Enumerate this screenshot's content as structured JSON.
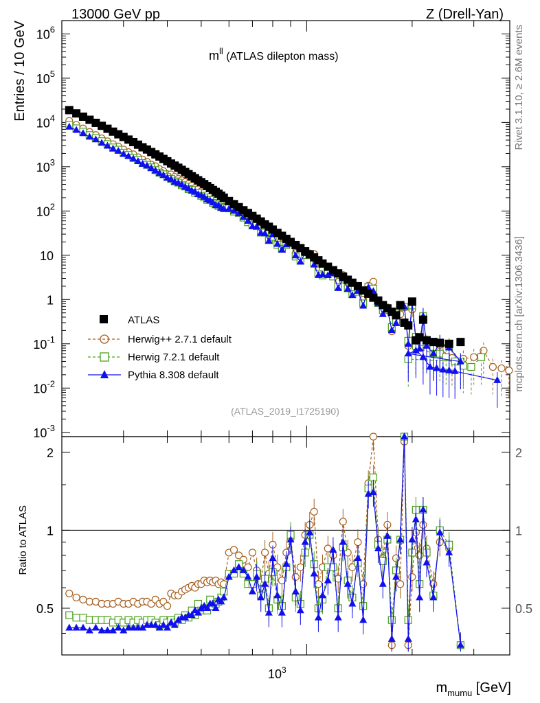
{
  "header": {
    "energy_label": "13000 GeV pp",
    "process_label": "Z (Drell-Yan)",
    "plot_title_main": "m",
    "plot_title_sup": "ll",
    "plot_title_rest": " (ATLAS dilepton mass)",
    "analysis_id": "(ATLAS_2019_I1725190)",
    "side_top": "Rivet 3.1.10, ≥ 2.6M events",
    "side_bottom": "mcplots.cern.ch [arXiv:1306.3436]"
  },
  "colors": {
    "atlas": "#000000",
    "herwigpp": "#a65e1c",
    "herwig7": "#48a01c",
    "pythia": "#1010ee"
  },
  "chart_data": {
    "type": "scatter",
    "x_scale": "log",
    "y_scale_main": "log",
    "xlim": [
      200,
      3800
    ],
    "ylim_main": [
      0.0008,
      2000000
    ],
    "ylim_ratio": [
      0.33,
      2.3
    ],
    "xlabel_main": "m",
    "xlabel_sub": "mumu",
    "xlabel_unit": " [GeV]",
    "ylabel_main": "Entries / 10 GeV",
    "ylabel_ratio": "Ratio to ATLAS",
    "x_tick_label": "10",
    "x_tick_exp": "3",
    "ratio_ticks": [
      "0.5",
      "1",
      "2"
    ],
    "main_ticks": [
      {
        "base": "10",
        "exp": "-3"
      },
      {
        "base": "10",
        "exp": "-2"
      },
      {
        "base": "10",
        "exp": "-1"
      },
      {
        "base": "1",
        "exp": ""
      },
      {
        "base": "10",
        "exp": ""
      },
      {
        "base": "10",
        "exp": "2"
      },
      {
        "base": "10",
        "exp": "3"
      },
      {
        "base": "10",
        "exp": "4"
      },
      {
        "base": "10",
        "exp": "5"
      },
      {
        "base": "10",
        "exp": "6"
      }
    ],
    "legend_position": "lower-left",
    "series": [
      {
        "name": "ATLAS"
      },
      {
        "name": "Herwig++ 2.7.1 default"
      },
      {
        "name": "Herwig 7.2.1 default"
      },
      {
        "name": "Pythia 8.308 default"
      }
    ],
    "atlas_points": [
      [
        210,
        19000
      ],
      [
        220,
        16000
      ],
      [
        230,
        13500
      ],
      [
        240,
        11500
      ],
      [
        250,
        9800
      ],
      [
        260,
        8400
      ],
      [
        270,
        7200
      ],
      [
        280,
        6200
      ],
      [
        290,
        5400
      ],
      [
        300,
        4700
      ],
      [
        310,
        4100
      ],
      [
        320,
        3600
      ],
      [
        330,
        3150
      ],
      [
        340,
        2750
      ],
      [
        350,
        2450
      ],
      [
        360,
        2150
      ],
      [
        370,
        1900
      ],
      [
        380,
        1700
      ],
      [
        390,
        1500
      ],
      [
        400,
        1330
      ],
      [
        410,
        1180
      ],
      [
        420,
        1060
      ],
      [
        430,
        950
      ],
      [
        440,
        850
      ],
      [
        450,
        760
      ],
      [
        460,
        680
      ],
      [
        470,
        610
      ],
      [
        480,
        550
      ],
      [
        490,
        495
      ],
      [
        500,
        450
      ],
      [
        510,
        405
      ],
      [
        520,
        365
      ],
      [
        530,
        330
      ],
      [
        540,
        298
      ],
      [
        550,
        270
      ],
      [
        560,
        245
      ],
      [
        570,
        222
      ],
      [
        580,
        200
      ],
      [
        600,
        168
      ],
      [
        620,
        143
      ],
      [
        640,
        122
      ],
      [
        660,
        104
      ],
      [
        680,
        90
      ],
      [
        700,
        77
      ],
      [
        720,
        67
      ],
      [
        740,
        58
      ],
      [
        760,
        50
      ],
      [
        780,
        44
      ],
      [
        800,
        38
      ],
      [
        825,
        32
      ],
      [
        850,
        27.5
      ],
      [
        875,
        23.5
      ],
      [
        900,
        20
      ],
      [
        930,
        17
      ],
      [
        960,
        14.5
      ],
      [
        990,
        12.3
      ],
      [
        1020,
        10.5
      ],
      [
        1050,
        9
      ],
      [
        1080,
        7.7
      ],
      [
        1110,
        6.5
      ],
      [
        1150,
        5.5
      ],
      [
        1190,
        4.6
      ],
      [
        1230,
        3.9
      ],
      [
        1270,
        3.3
      ],
      [
        1310,
        2.8
      ],
      [
        1350,
        2.4
      ],
      [
        1400,
        2.0
      ],
      [
        1450,
        1.6
      ],
      [
        1500,
        1.35
      ],
      [
        1550,
        1.1
      ],
      [
        1600,
        0.95
      ],
      [
        1650,
        0.75
      ],
      [
        1700,
        0.63
      ],
      [
        1750,
        0.53
      ],
      [
        1800,
        0.44
      ],
      [
        1850,
        0.75
      ],
      [
        1900,
        0.3
      ],
      [
        1950,
        0.26
      ],
      [
        2000,
        0.9
      ],
      [
        2050,
        0.12
      ],
      [
        2100,
        0.14
      ],
      [
        2150,
        0.35
      ],
      [
        2200,
        0.12
      ],
      [
        2300,
        0.11
      ],
      [
        2400,
        0.105
      ],
      [
        2550,
        0.1
      ],
      [
        2750,
        0.11
      ]
    ],
    "ratio_points": [
      [
        210,
        0.57,
        0.47,
        0.42
      ],
      [
        220,
        0.55,
        0.46,
        0.42
      ],
      [
        230,
        0.54,
        0.46,
        0.42
      ],
      [
        240,
        0.53,
        0.45,
        0.41
      ],
      [
        250,
        0.53,
        0.45,
        0.42
      ],
      [
        260,
        0.52,
        0.45,
        0.41
      ],
      [
        270,
        0.52,
        0.45,
        0.41
      ],
      [
        280,
        0.52,
        0.44,
        0.41
      ],
      [
        290,
        0.53,
        0.45,
        0.42
      ],
      [
        300,
        0.52,
        0.44,
        0.41
      ],
      [
        310,
        0.52,
        0.45,
        0.42
      ],
      [
        320,
        0.53,
        0.44,
        0.42
      ],
      [
        330,
        0.52,
        0.45,
        0.42
      ],
      [
        340,
        0.53,
        0.44,
        0.42
      ],
      [
        350,
        0.53,
        0.45,
        0.43
      ],
      [
        360,
        0.52,
        0.45,
        0.43
      ],
      [
        370,
        0.54,
        0.44,
        0.43
      ],
      [
        380,
        0.52,
        0.43,
        0.42
      ],
      [
        390,
        0.53,
        0.45,
        0.43
      ],
      [
        400,
        0.51,
        0.44,
        0.42
      ],
      [
        410,
        0.57,
        0.45,
        0.44
      ],
      [
        420,
        0.56,
        0.44,
        0.43
      ],
      [
        430,
        0.56,
        0.46,
        0.45
      ],
      [
        440,
        0.58,
        0.45,
        0.46
      ],
      [
        450,
        0.59,
        0.47,
        0.46
      ],
      [
        460,
        0.6,
        0.46,
        0.47
      ],
      [
        470,
        0.61,
        0.49,
        0.47
      ],
      [
        480,
        0.6,
        0.47,
        0.49
      ],
      [
        490,
        0.62,
        0.52,
        0.48
      ],
      [
        500,
        0.62,
        0.49,
        0.5
      ],
      [
        510,
        0.64,
        0.5,
        0.51
      ],
      [
        520,
        0.63,
        0.49,
        0.5
      ],
      [
        530,
        0.64,
        0.54,
        0.52
      ],
      [
        540,
        0.63,
        0.51,
        0.52
      ],
      [
        550,
        0.64,
        0.52,
        0.5
      ],
      [
        560,
        0.62,
        0.53,
        0.54
      ],
      [
        570,
        0.63,
        0.55,
        0.53
      ],
      [
        580,
        0.62,
        0.58,
        0.55
      ],
      [
        600,
        0.82,
        0.68,
        0.66
      ],
      [
        620,
        0.84,
        0.68,
        0.7
      ],
      [
        640,
        0.8,
        0.74,
        0.72
      ],
      [
        660,
        0.77,
        0.68,
        0.7
      ],
      [
        680,
        0.72,
        0.62,
        0.66
      ],
      [
        700,
        0.82,
        0.62,
        0.58
      ],
      [
        720,
        0.7,
        0.68,
        0.66
      ],
      [
        740,
        0.63,
        0.56,
        0.55
      ],
      [
        760,
        0.82,
        0.65,
        0.62
      ],
      [
        780,
        0.68,
        0.5,
        0.48
      ],
      [
        800,
        0.88,
        0.69,
        0.78
      ],
      [
        825,
        0.72,
        0.54,
        0.56
      ],
      [
        850,
        0.64,
        0.51,
        0.48
      ],
      [
        875,
        0.82,
        0.72,
        0.74
      ],
      [
        900,
        0.93,
        0.96,
        0.92
      ],
      [
        930,
        0.66,
        0.55,
        0.58
      ],
      [
        960,
        0.72,
        0.52,
        0.49
      ],
      [
        990,
        0.96,
        0.82,
        0.9
      ],
      [
        1020,
        1.05,
        0.96,
        0.98
      ],
      [
        1050,
        1.18,
        0.74,
        0.68
      ],
      [
        1080,
        0.62,
        0.5,
        0.46
      ],
      [
        1110,
        0.72,
        0.54,
        0.56
      ],
      [
        1150,
        0.85,
        0.72,
        0.64
      ],
      [
        1190,
        0.8,
        0.72,
        0.84
      ],
      [
        1230,
        0.65,
        0.5,
        0.46
      ],
      [
        1270,
        1.08,
        0.86,
        0.9
      ],
      [
        1310,
        0.82,
        0.64,
        0.62
      ],
      [
        1350,
        0.72,
        0.55,
        0.52
      ],
      [
        1400,
        0.9,
        0.75,
        0.78
      ],
      [
        1450,
        0.62,
        0.51,
        0.45
      ],
      [
        1500,
        1.52,
        1.45,
        1.38
      ],
      [
        1550,
        2.3,
        1.6,
        1.4
      ],
      [
        1600,
        0.92,
        0.88,
        0.85
      ],
      [
        1650,
        0.78,
        0.76,
        0.62
      ],
      [
        1700,
        1.05,
        0.92,
        0.95
      ],
      [
        1750,
        0.36,
        0.45,
        0.38
      ],
      [
        1800,
        0.78,
        0.7,
        0.66
      ],
      [
        1850,
        0.62,
        0.92,
        0.92
      ],
      [
        1900,
        2.2,
        2.3,
        2.3
      ],
      [
        1950,
        0.36,
        0.45,
        0.38
      ],
      [
        2000,
        0.66,
        0.82,
        0.92
      ],
      [
        2050,
        0.98,
        1.2,
        1.1
      ],
      [
        2100,
        0.8,
        0.62,
        0.55
      ],
      [
        2150,
        1.05,
        1.2,
        1.2
      ],
      [
        2200,
        0.85,
        0.82,
        0.75
      ],
      [
        2300,
        0.62,
        0.56,
        0.55
      ],
      [
        2400,
        0.9,
        1.0,
        0.98
      ],
      [
        2550,
        0.85,
        0.88,
        0.82
      ],
      [
        2750,
        0.36,
        0.36,
        0.36
      ]
    ],
    "tail_herwigpp": [
      [
        1950,
        0.09
      ],
      [
        2050,
        0.085
      ],
      [
        2150,
        0.09
      ],
      [
        2300,
        0.07
      ],
      [
        2450,
        0.055
      ],
      [
        2600,
        0.048
      ],
      [
        2800,
        0.046
      ],
      [
        3000,
        0.05
      ],
      [
        3200,
        0.07
      ],
      [
        3400,
        0.03
      ],
      [
        3600,
        0.028
      ],
      [
        3780,
        0.025
      ]
    ],
    "tail_herwig7": [
      [
        1950,
        0.045
      ],
      [
        2050,
        0.09
      ],
      [
        2150,
        0.11
      ],
      [
        2300,
        0.085
      ],
      [
        2400,
        0.06
      ],
      [
        2500,
        0.05
      ],
      [
        2650,
        0.04
      ],
      [
        2800,
        0.032
      ],
      [
        2950,
        0.03
      ],
      [
        3150,
        0.05
      ]
    ],
    "tail_pythia": [
      [
        1950,
        0.06
      ],
      [
        2050,
        0.07
      ],
      [
        2150,
        0.05
      ],
      [
        2250,
        0.03
      ],
      [
        2350,
        0.028
      ],
      [
        2450,
        0.026
      ],
      [
        2550,
        0.025
      ],
      [
        2650,
        0.024
      ],
      [
        3500,
        0.015
      ]
    ]
  }
}
